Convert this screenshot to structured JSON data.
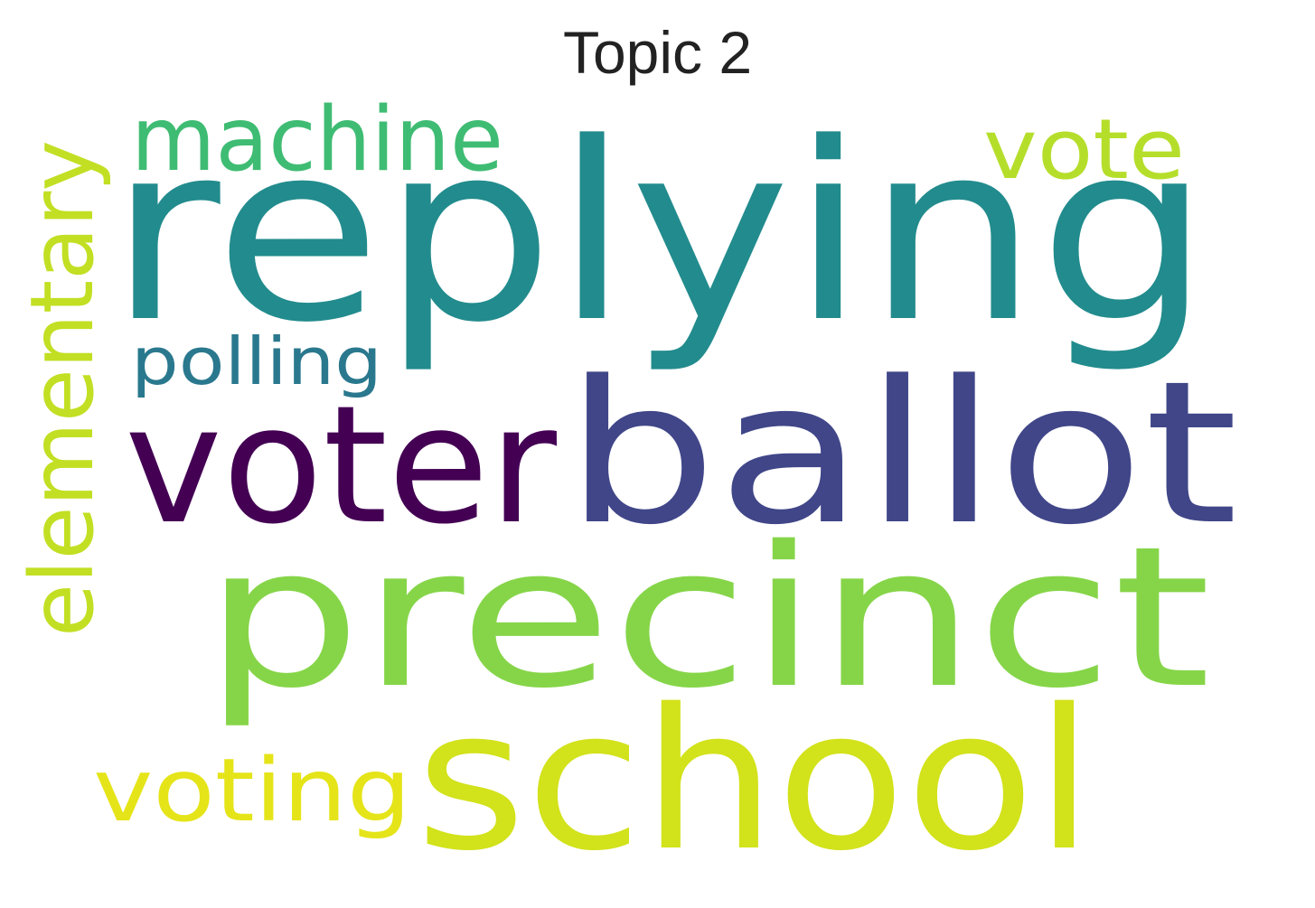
{
  "title": "Topic 2",
  "words": [
    {
      "text": "replying",
      "color": "#228b8d"
    },
    {
      "text": "ballot",
      "color": "#404688"
    },
    {
      "text": "voter",
      "color": "#440154"
    },
    {
      "text": "precinct",
      "color": "#86d549"
    },
    {
      "text": "school",
      "color": "#d2e21b"
    },
    {
      "text": "machine",
      "color": "#3fbc73"
    },
    {
      "text": "vote",
      "color": "#b5de2b"
    },
    {
      "text": "elementary",
      "color": "#c2df23"
    },
    {
      "text": "polling",
      "color": "#2a788e"
    },
    {
      "text": "voting",
      "color": "#e5e419"
    }
  ]
}
